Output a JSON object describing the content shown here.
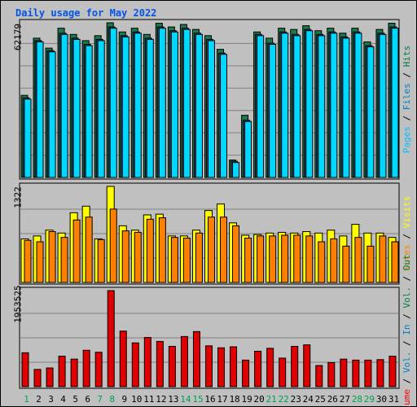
{
  "title": "Daily usage for May 2022",
  "panels": [
    {
      "max_label": "62179"
    },
    {
      "max_label": "1322"
    },
    {
      "max_label": "1953525"
    }
  ],
  "legend_top": [
    {
      "text": "Hits",
      "color": "#008040"
    },
    {
      "text": "Files",
      "color": "#0080c0"
    },
    {
      "text": "Pages",
      "color": "#00c0ff"
    }
  ],
  "legend_mid": [
    {
      "text": "Visits",
      "color": "#ffff00"
    },
    {
      "text": "Sites",
      "color": "#ff8000"
    }
  ],
  "legend_bot": [
    {
      "text": "Out",
      "color": "#008040"
    },
    {
      "text": "Vol.",
      "color": "#008040"
    },
    {
      "text": "In",
      "color": "#0080c0"
    },
    {
      "text": "Vol.",
      "color": "#0080c0"
    },
    {
      "text": "Volume",
      "color": "#ff0000"
    }
  ],
  "colors": {
    "hits": "#1a7a4a",
    "files": "#1a4f7a",
    "pages": "#00d8ff",
    "visits": "#ffff00",
    "sites": "#ff8000",
    "volume": "#e00000",
    "day_normal": "#000000",
    "day_weekend": "#00a050"
  },
  "chart_data": [
    {
      "type": "bar",
      "categories": [
        "1",
        "2",
        "3",
        "4",
        "5",
        "6",
        "7",
        "8",
        "9",
        "10",
        "11",
        "12",
        "13",
        "14",
        "15",
        "16",
        "17",
        "18",
        "19",
        "20",
        "21",
        "22",
        "23",
        "24",
        "25",
        "26",
        "27",
        "28",
        "29",
        "30",
        "31"
      ],
      "weekend_days": [
        "1",
        "7",
        "8",
        "14",
        "15",
        "21",
        "22",
        "28",
        "29"
      ],
      "ylim": [
        0,
        62179
      ],
      "series": [
        {
          "name": "Hits",
          "values": [
            33000,
            56000,
            52000,
            60000,
            57500,
            55000,
            57000,
            62179,
            58500,
            60000,
            57500,
            62000,
            60500,
            61500,
            59500,
            57000,
            51500,
            7000,
            25000,
            58500,
            56000,
            60000,
            59500,
            61000,
            59000,
            60000,
            58000,
            60000,
            54500,
            59500,
            62000
          ]
        },
        {
          "name": "Files",
          "values": [
            32000,
            55000,
            51000,
            58000,
            56000,
            53500,
            55500,
            60500,
            57000,
            58500,
            56000,
            60500,
            59000,
            60000,
            58000,
            55500,
            50000,
            6500,
            23000,
            57500,
            54000,
            58500,
            57500,
            59500,
            57500,
            58500,
            56500,
            58500,
            53000,
            58000,
            60500
          ]
        },
        {
          "name": "Pages",
          "values": [
            31500,
            54500,
            50500,
            57500,
            55500,
            53000,
            55000,
            60000,
            56500,
            58000,
            55500,
            60000,
            58500,
            59500,
            57500,
            55000,
            49500,
            6000,
            22500,
            57000,
            53500,
            58000,
            57000,
            59000,
            57000,
            58000,
            56000,
            58000,
            52500,
            57500,
            60000
          ]
        }
      ]
    },
    {
      "type": "bar",
      "categories": [
        "1",
        "2",
        "3",
        "4",
        "5",
        "6",
        "7",
        "8",
        "9",
        "10",
        "11",
        "12",
        "13",
        "14",
        "15",
        "16",
        "17",
        "18",
        "19",
        "20",
        "21",
        "22",
        "23",
        "24",
        "25",
        "26",
        "27",
        "28",
        "29",
        "30",
        "31"
      ],
      "ylim": [
        0,
        1322
      ],
      "series": [
        {
          "name": "Visits",
          "values": [
            600,
            640,
            720,
            680,
            960,
            1050,
            600,
            1322,
            780,
            720,
            930,
            940,
            640,
            640,
            720,
            990,
            1080,
            820,
            650,
            660,
            680,
            690,
            680,
            700,
            680,
            720,
            640,
            800,
            680,
            680,
            620
          ]
        },
        {
          "name": "Sites",
          "values": [
            580,
            560,
            700,
            620,
            860,
            900,
            590,
            1010,
            710,
            690,
            870,
            890,
            620,
            610,
            680,
            900,
            900,
            780,
            610,
            640,
            640,
            650,
            650,
            640,
            560,
            600,
            500,
            620,
            500,
            640,
            560
          ]
        }
      ]
    },
    {
      "type": "bar",
      "categories": [
        "1",
        "2",
        "3",
        "4",
        "5",
        "6",
        "7",
        "8",
        "9",
        "10",
        "11",
        "12",
        "13",
        "14",
        "15",
        "16",
        "17",
        "18",
        "19",
        "20",
        "21",
        "22",
        "23",
        "24",
        "25",
        "26",
        "27",
        "28",
        "29",
        "30",
        "31"
      ],
      "ylim": [
        0,
        1953525
      ],
      "series": [
        {
          "name": "Volume",
          "values": [
            690000,
            350000,
            380000,
            620000,
            560000,
            740000,
            700000,
            1953525,
            1130000,
            890000,
            1000000,
            920000,
            820000,
            1020000,
            1120000,
            830000,
            790000,
            810000,
            540000,
            720000,
            780000,
            580000,
            820000,
            850000,
            430000,
            490000,
            560000,
            540000,
            540000,
            550000,
            620000
          ]
        }
      ]
    }
  ]
}
